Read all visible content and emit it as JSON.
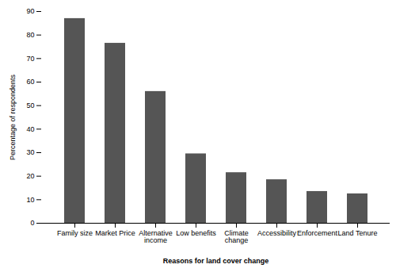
{
  "chart_data": {
    "type": "bar",
    "categories": [
      "Family size",
      "Market Price",
      "Alternative\nincome",
      "Low benefits",
      "Climate\nchange",
      "Accessibility",
      "Enforcement",
      "Land Tenure"
    ],
    "values": [
      87,
      76.5,
      56,
      29.5,
      21.5,
      18.5,
      13.5,
      12.5
    ],
    "color": "#555555",
    "xlabel": "Reasons for land cover change",
    "ylabel": "Percentage of respondents",
    "ylim": [
      0,
      90
    ],
    "yticks": [
      0,
      10,
      20,
      30,
      40,
      50,
      60,
      70,
      80,
      90
    ],
    "grid": false
  }
}
